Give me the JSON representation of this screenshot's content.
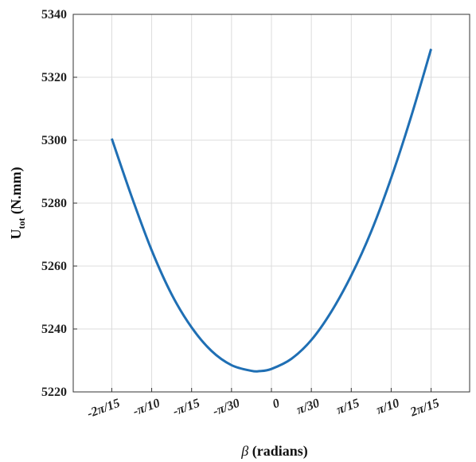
{
  "chart_data": {
    "type": "line",
    "xlabel_symbol": "β",
    "xlabel_text": " (radians)",
    "ylabel_main": "U",
    "ylabel_sub": "tot",
    "ylabel_unit": " (N.mm)",
    "x_ticks": [
      {
        "value": -0.41888,
        "label": "-2π/15"
      },
      {
        "value": -0.31416,
        "label": "-π/10"
      },
      {
        "value": -0.20944,
        "label": "-π/15"
      },
      {
        "value": -0.10472,
        "label": "-π/30"
      },
      {
        "value": 0,
        "label": "0"
      },
      {
        "value": 0.10472,
        "label": "π/30"
      },
      {
        "value": 0.20944,
        "label": "π/15"
      },
      {
        "value": 0.31416,
        "label": "π/10"
      },
      {
        "value": 0.41888,
        "label": "2π/15"
      }
    ],
    "y_ticks": [
      5220,
      5240,
      5260,
      5280,
      5300,
      5320,
      5340
    ],
    "xlim": [
      -0.52,
      0.52
    ],
    "ylim": [
      5220,
      5340
    ],
    "grid": true,
    "series": [
      {
        "color": "#1f6fb4",
        "x": [
          -0.41888,
          -0.36652,
          -0.31416,
          -0.2618,
          -0.20944,
          -0.15708,
          -0.10472,
          -0.05236,
          -0.0314,
          0,
          0.05236,
          0.10472,
          0.15708,
          0.20944,
          0.2618,
          0.31416,
          0.36652,
          0.41888
        ],
        "y": [
          5300.5,
          5282,
          5265,
          5251,
          5240.5,
          5233,
          5228.5,
          5226.7,
          5226.6,
          5227.3,
          5230.5,
          5236.5,
          5245.5,
          5257,
          5271,
          5288,
          5307.5,
          5329
        ]
      }
    ]
  }
}
